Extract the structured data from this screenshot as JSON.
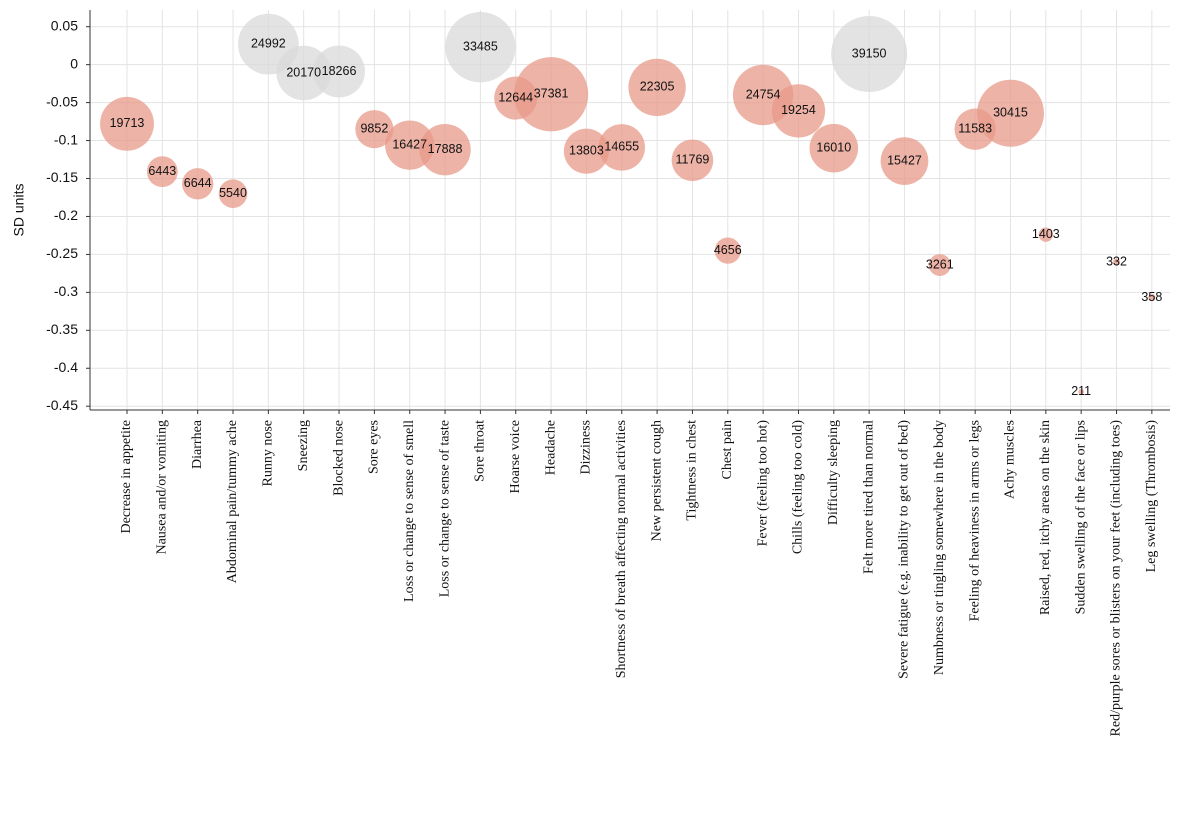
{
  "chart_data": {
    "type": "bubble",
    "ylabel": "SD units",
    "categories": [
      "Decrease in appetite",
      "Nausea and/or vomiting",
      "Diarrhea",
      "Abdominal pain/tummy ache",
      "Runny nose",
      "Sneezing",
      "Blocked nose",
      "Sore eyes",
      "Loss or change to sense of smell",
      "Loss or change to sense of taste",
      "Sore throat",
      "Hoarse voice",
      "Headache",
      "Dizziness",
      "Shortness of breath affecting normal activities",
      "New persistent cough",
      "Tightness in chest",
      "Chest pain",
      "Fever (feeling too hot)",
      "Chills (feeling too cold)",
      "Difficulty sleeping",
      "Felt more tired than normal",
      "Severe fatigue (e.g. inability to get out of bed)",
      "Numbness or tingling somewhere in the body",
      "Feeling of heaviness in arms or legs",
      "Achy muscles",
      "Raised, red, itchy areas on the skin",
      "Sudden swelling of the face or lips",
      "Red/purple sores or blisters on your feet (including toes)",
      "Leg swelling (Thrombosis)"
    ],
    "series": [
      {
        "values": [
          -0.078,
          -0.141,
          -0.157,
          -0.17,
          0.027,
          -0.011,
          -0.009,
          -0.085,
          -0.106,
          -0.112,
          0.023,
          -0.044,
          -0.039,
          -0.114,
          -0.109,
          -0.03,
          -0.126,
          -0.245,
          -0.04,
          -0.061,
          -0.11,
          0.014,
          -0.127,
          -0.264,
          -0.085,
          -0.064,
          -0.224,
          -0.431,
          -0.26,
          -0.307
        ],
        "sizes": [
          19713,
          6443,
          6644,
          5540,
          24992,
          20170,
          18266,
          9852,
          16427,
          17888,
          33485,
          12644,
          37381,
          13803,
          14655,
          22305,
          11769,
          4656,
          24754,
          19254,
          16010,
          39150,
          15427,
          3261,
          11583,
          30415,
          1403,
          211,
          332,
          358
        ],
        "colors": [
          "#e8998a",
          "#e8998a",
          "#e8998a",
          "#e8998a",
          "#d9d9d9",
          "#d9d9d9",
          "#d9d9d9",
          "#e8998a",
          "#e8998a",
          "#e8998a",
          "#d9d9d9",
          "#e8998a",
          "#e8998a",
          "#e8998a",
          "#e8998a",
          "#e8998a",
          "#e8998a",
          "#e8998a",
          "#e8998a",
          "#e8998a",
          "#e8998a",
          "#d9d9d9",
          "#e8998a",
          "#e8998a",
          "#e8998a",
          "#e8998a",
          "#e8998a",
          "#e8998a",
          "#e8998a",
          "#e8998a"
        ]
      }
    ],
    "ylim": [
      -0.455,
      0.072
    ],
    "yticks": [
      0.05,
      0,
      -0.05,
      -0.1,
      -0.15,
      -0.2,
      -0.25,
      -0.3,
      -0.35,
      -0.4,
      -0.45
    ],
    "grid": true
  }
}
